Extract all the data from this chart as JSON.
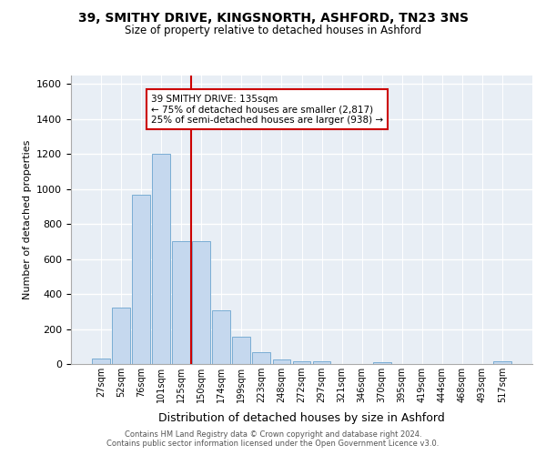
{
  "title_line1": "39, SMITHY DRIVE, KINGSNORTH, ASHFORD, TN23 3NS",
  "title_line2": "Size of property relative to detached houses in Ashford",
  "xlabel": "Distribution of detached houses by size in Ashford",
  "ylabel": "Number of detached properties",
  "bar_labels": [
    "27sqm",
    "52sqm",
    "76sqm",
    "101sqm",
    "125sqm",
    "150sqm",
    "174sqm",
    "199sqm",
    "223sqm",
    "248sqm",
    "272sqm",
    "297sqm",
    "321sqm",
    "346sqm",
    "370sqm",
    "395sqm",
    "419sqm",
    "444sqm",
    "468sqm",
    "493sqm",
    "517sqm"
  ],
  "bar_values": [
    30,
    320,
    965,
    1200,
    700,
    700,
    305,
    155,
    70,
    28,
    18,
    15,
    0,
    0,
    10,
    0,
    0,
    0,
    0,
    0,
    13
  ],
  "bar_color": "#c5d8ee",
  "bar_edge_color": "#7aadd4",
  "vline_x": 4.5,
  "vline_color": "#cc0000",
  "annotation_line1": "39 SMITHY DRIVE: 135sqm",
  "annotation_line2": "← 75% of detached houses are smaller (2,817)",
  "annotation_line3": "25% of semi-detached houses are larger (938) →",
  "annotation_box_color": "#ffffff",
  "annotation_box_edge": "#cc0000",
  "ylim_max": 1650,
  "yticks": [
    0,
    200,
    400,
    600,
    800,
    1000,
    1200,
    1400,
    1600
  ],
  "plot_bg_color": "#e8eef5",
  "footer_text": "Contains HM Land Registry data © Crown copyright and database right 2024.\nContains public sector information licensed under the Open Government Licence v3.0."
}
